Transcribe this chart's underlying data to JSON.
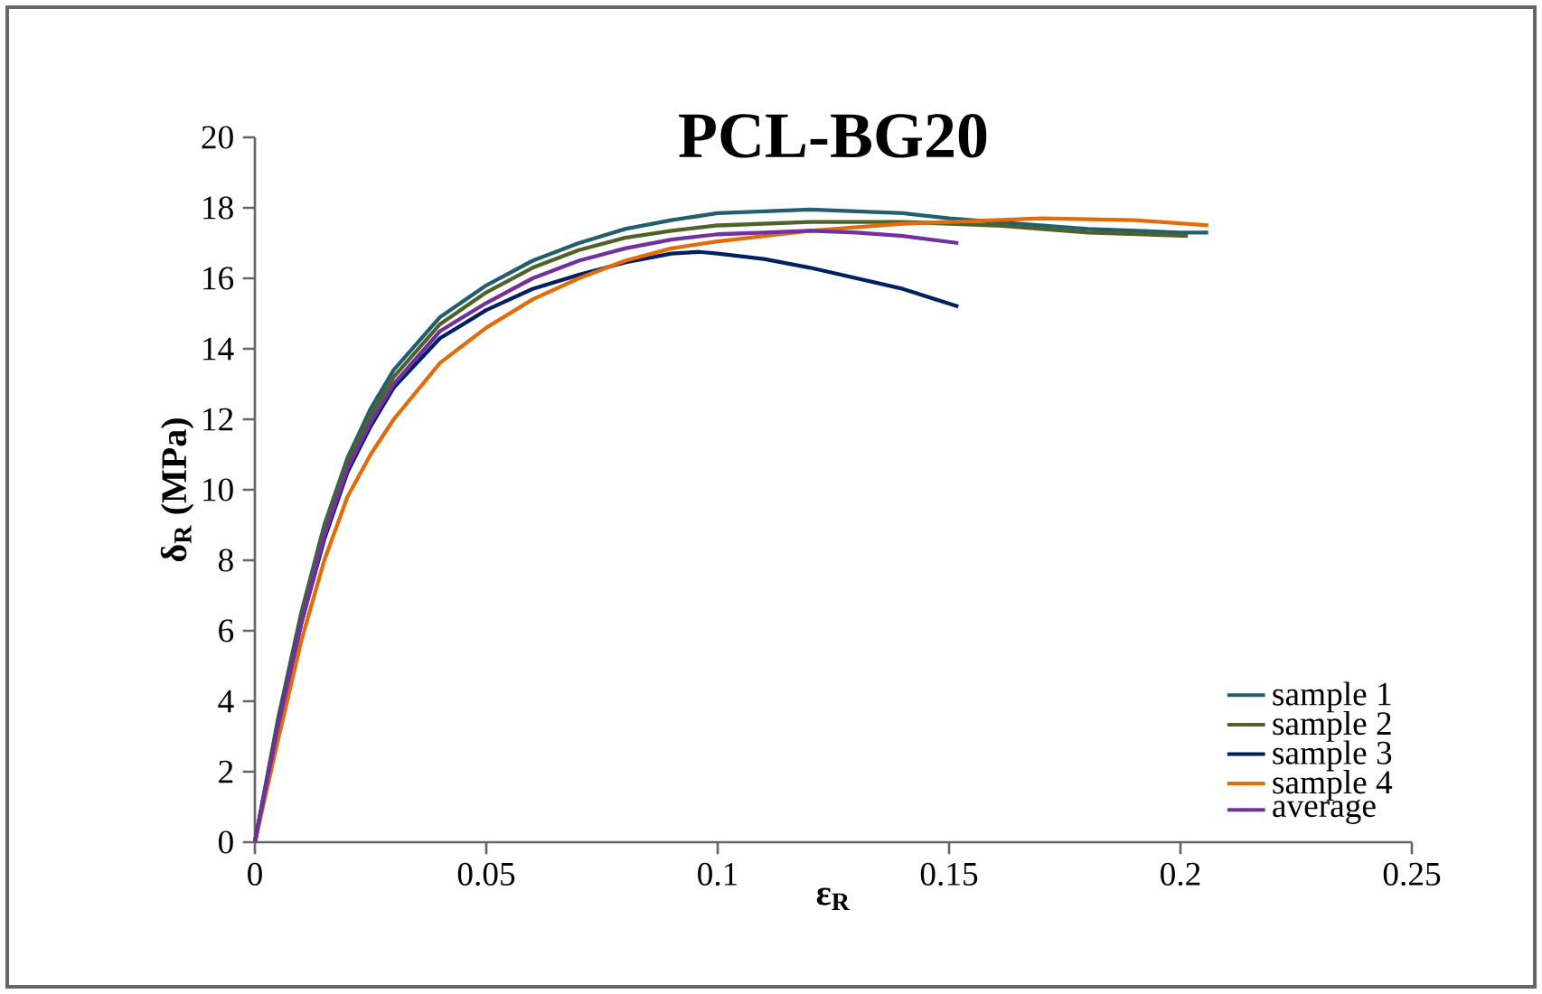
{
  "chart_data": {
    "type": "line",
    "title": "PCL-BG20",
    "xlabel": "ε$_{R}$",
    "ylabel": "δ$_{R}$ (MPa)",
    "xlim": [
      0,
      0.25
    ],
    "ylim": [
      0,
      20
    ],
    "xticks": [
      0,
      0.05,
      0.1,
      0.15,
      0.2,
      0.25
    ],
    "yticks": [
      0,
      2,
      4,
      6,
      8,
      10,
      12,
      14,
      16,
      18,
      20
    ],
    "grid": false,
    "legend": "bottom right",
    "marker": "none",
    "line_style": "solid",
    "series": [
      {
        "name": "sample 1",
        "color": "#215f6e",
        "x": [
          0,
          0.005,
          0.01,
          0.015,
          0.02,
          0.025,
          0.03,
          0.04,
          0.05,
          0.06,
          0.07,
          0.08,
          0.09,
          0.1,
          0.12,
          0.14,
          0.15,
          0.16,
          0.18,
          0.2,
          0.206
        ],
        "values": [
          0,
          3.5,
          6.5,
          9.0,
          10.9,
          12.3,
          13.4,
          14.9,
          15.8,
          16.5,
          17.0,
          17.4,
          17.65,
          17.85,
          17.95,
          17.85,
          17.7,
          17.6,
          17.4,
          17.3,
          17.3
        ]
      },
      {
        "name": "sample 2",
        "color": "#4f6228",
        "x": [
          0,
          0.005,
          0.01,
          0.015,
          0.02,
          0.025,
          0.03,
          0.04,
          0.05,
          0.06,
          0.07,
          0.08,
          0.09,
          0.1,
          0.12,
          0.14,
          0.15,
          0.16,
          0.18,
          0.2016
        ],
        "values": [
          0,
          3.4,
          6.4,
          8.9,
          10.8,
          12.1,
          13.2,
          14.7,
          15.6,
          16.3,
          16.8,
          17.15,
          17.35,
          17.5,
          17.6,
          17.6,
          17.55,
          17.5,
          17.3,
          17.2
        ]
      },
      {
        "name": "sample 3",
        "color": "#002060",
        "x": [
          0,
          0.005,
          0.01,
          0.015,
          0.02,
          0.025,
          0.03,
          0.04,
          0.05,
          0.06,
          0.07,
          0.08,
          0.09,
          0.096,
          0.1,
          0.11,
          0.12,
          0.13,
          0.14,
          0.152
        ],
        "values": [
          0,
          3.3,
          6.2,
          8.6,
          10.5,
          11.8,
          12.9,
          14.3,
          15.1,
          15.7,
          16.1,
          16.45,
          16.7,
          16.75,
          16.7,
          16.55,
          16.3,
          16.0,
          15.7,
          15.2
        ]
      },
      {
        "name": "sample 4",
        "color": "#e36c09",
        "x": [
          0,
          0.005,
          0.01,
          0.015,
          0.02,
          0.025,
          0.03,
          0.04,
          0.05,
          0.06,
          0.07,
          0.08,
          0.09,
          0.1,
          0.12,
          0.14,
          0.15,
          0.17,
          0.19,
          0.206
        ],
        "values": [
          0,
          2.9,
          5.7,
          8.0,
          9.8,
          11.0,
          12.0,
          13.6,
          14.6,
          15.4,
          16.0,
          16.5,
          16.85,
          17.05,
          17.35,
          17.55,
          17.6,
          17.7,
          17.65,
          17.5
        ]
      },
      {
        "name": "average",
        "color": "#7030a0",
        "x": [
          0,
          0.005,
          0.01,
          0.015,
          0.02,
          0.025,
          0.03,
          0.04,
          0.05,
          0.06,
          0.07,
          0.08,
          0.09,
          0.1,
          0.11,
          0.12,
          0.13,
          0.14,
          0.152
        ],
        "values": [
          0,
          3.3,
          6.2,
          8.7,
          10.6,
          11.9,
          13.0,
          14.5,
          15.3,
          16.0,
          16.5,
          16.85,
          17.1,
          17.25,
          17.3,
          17.35,
          17.3,
          17.2,
          17.0
        ]
      }
    ]
  }
}
